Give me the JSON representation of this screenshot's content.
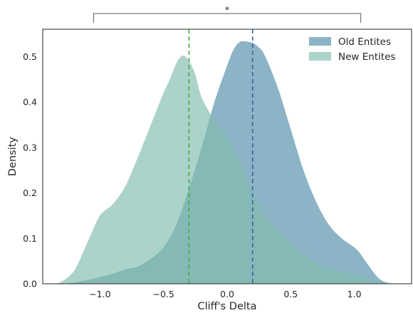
{
  "chart_data": {
    "type": "area",
    "title": "",
    "xlabel": "Cliff's Delta",
    "ylabel": "Density",
    "xlim": [
      -1.45,
      1.45
    ],
    "ylim": [
      0,
      0.56
    ],
    "xticks": [
      -1.0,
      -0.5,
      0.0,
      0.5,
      1.0
    ],
    "xtick_labels": [
      "−1.0",
      "−0.5",
      "0.0",
      "0.5",
      "1.0"
    ],
    "yticks": [
      0.0,
      0.1,
      0.2,
      0.3,
      0.4,
      0.5
    ],
    "ytick_labels": [
      "0.0",
      "0.1",
      "0.2",
      "0.3",
      "0.4",
      "0.5"
    ],
    "grid": false,
    "legend": "top-right",
    "series": [
      {
        "name": "Old Entites",
        "color": "#4f8ca8",
        "mean_line": 0.2,
        "mean_line_color": "#3a62a8",
        "x": [
          -1.3,
          -1.2,
          -1.1,
          -1.0,
          -0.9,
          -0.8,
          -0.7,
          -0.6,
          -0.5,
          -0.4,
          -0.3,
          -0.2,
          -0.1,
          0.0,
          0.05,
          0.1,
          0.15,
          0.2,
          0.25,
          0.3,
          0.4,
          0.5,
          0.6,
          0.7,
          0.8,
          0.9,
          1.0,
          1.05,
          1.1,
          1.2,
          1.3
        ],
        "y": [
          0.0,
          0.003,
          0.008,
          0.015,
          0.022,
          0.032,
          0.038,
          0.055,
          0.08,
          0.13,
          0.21,
          0.3,
          0.4,
          0.48,
          0.515,
          0.532,
          0.533,
          0.53,
          0.52,
          0.5,
          0.43,
          0.34,
          0.25,
          0.18,
          0.13,
          0.1,
          0.08,
          0.065,
          0.045,
          0.01,
          0.0
        ]
      },
      {
        "name": "New Entites",
        "color": "#7fbbae",
        "mean_line": -0.3,
        "mean_line_color": "#4aa84a",
        "x": [
          -1.35,
          -1.3,
          -1.2,
          -1.1,
          -1.0,
          -0.9,
          -0.8,
          -0.7,
          -0.6,
          -0.5,
          -0.45,
          -0.4,
          -0.35,
          -0.3,
          -0.25,
          -0.2,
          -0.1,
          0.0,
          0.1,
          0.2,
          0.3,
          0.4,
          0.5,
          0.6,
          0.7,
          0.8,
          0.9,
          1.0,
          1.1,
          1.2,
          1.25
        ],
        "y": [
          0.0,
          0.005,
          0.03,
          0.09,
          0.15,
          0.175,
          0.215,
          0.28,
          0.35,
          0.42,
          0.45,
          0.485,
          0.502,
          0.49,
          0.46,
          0.41,
          0.36,
          0.325,
          0.27,
          0.2,
          0.15,
          0.12,
          0.09,
          0.065,
          0.045,
          0.035,
          0.028,
          0.022,
          0.012,
          0.003,
          0.0
        ]
      }
    ],
    "annotations": [
      {
        "type": "significance-bracket",
        "x1": -1.05,
        "x2": 1.05,
        "text": "*"
      }
    ]
  }
}
